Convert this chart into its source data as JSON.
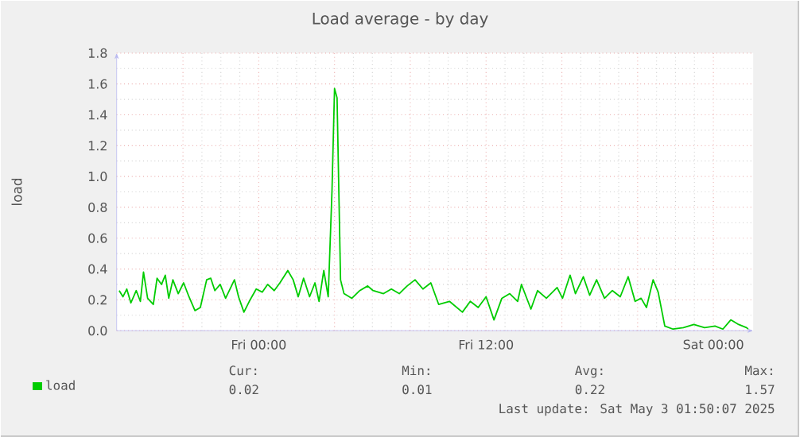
{
  "chart_data": {
    "type": "line",
    "title": "Load average - by day",
    "ylabel": "load",
    "x": [
      "2025-05-01T16:38",
      "2025-05-01T16:50",
      "2025-05-01T17:02",
      "2025-05-01T17:15",
      "2025-05-01T17:32",
      "2025-05-01T17:45",
      "2025-05-01T17:55",
      "2025-05-01T18:08",
      "2025-05-01T18:26",
      "2025-05-01T18:38",
      "2025-05-01T18:52",
      "2025-05-01T19:04",
      "2025-05-01T19:15",
      "2025-05-01T19:28",
      "2025-05-01T19:45",
      "2025-05-01T20:02",
      "2025-05-01T20:19",
      "2025-05-01T20:38",
      "2025-05-01T20:55",
      "2025-05-01T21:15",
      "2025-05-01T21:28",
      "2025-05-01T21:41",
      "2025-05-01T21:58",
      "2025-05-01T22:15",
      "2025-05-01T22:43",
      "2025-05-01T22:56",
      "2025-05-01T23:13",
      "2025-05-01T23:30",
      "2025-05-01T23:52",
      "2025-05-02T00:11",
      "2025-05-02T00:28",
      "2025-05-02T00:49",
      "2025-05-02T01:07",
      "2025-05-02T01:32",
      "2025-05-02T01:49",
      "2025-05-02T02:05",
      "2025-05-02T02:22",
      "2025-05-02T02:41",
      "2025-05-02T02:58",
      "2025-05-02T03:11",
      "2025-05-02T03:26",
      "2025-05-02T03:40",
      "2025-05-02T03:52",
      "2025-05-02T04:00",
      "2025-05-02T04:08",
      "2025-05-02T04:19",
      "2025-05-02T04:30",
      "2025-05-02T04:55",
      "2025-05-02T05:20",
      "2025-05-02T05:45",
      "2025-05-02T06:02",
      "2025-05-02T06:35",
      "2025-05-02T07:00",
      "2025-05-02T07:25",
      "2025-05-02T07:50",
      "2025-05-02T08:15",
      "2025-05-02T08:40",
      "2025-05-02T09:05",
      "2025-05-02T09:30",
      "2025-05-02T10:04",
      "2025-05-02T10:45",
      "2025-05-02T11:10",
      "2025-05-02T11:35",
      "2025-05-02T12:00",
      "2025-05-02T12:25",
      "2025-05-02T12:50",
      "2025-05-02T13:15",
      "2025-05-02T13:40",
      "2025-05-02T13:52",
      "2025-05-02T14:22",
      "2025-05-02T14:43",
      "2025-05-02T15:11",
      "2025-05-02T15:45",
      "2025-05-02T16:02",
      "2025-05-02T16:26",
      "2025-05-02T16:43",
      "2025-05-02T17:08",
      "2025-05-02T17:28",
      "2025-05-02T17:50",
      "2025-05-02T18:15",
      "2025-05-02T18:40",
      "2025-05-02T19:05",
      "2025-05-02T19:30",
      "2025-05-02T19:52",
      "2025-05-02T20:11",
      "2025-05-02T20:28",
      "2025-05-02T20:49",
      "2025-05-02T21:05",
      "2025-05-02T21:26",
      "2025-05-02T21:52",
      "2025-05-02T22:25",
      "2025-05-02T22:58",
      "2025-05-02T23:32",
      "2025-05-03T00:05",
      "2025-05-03T00:30",
      "2025-05-03T00:55",
      "2025-05-03T01:20",
      "2025-05-03T01:45",
      "2025-05-03T01:50"
    ],
    "series": [
      {
        "name": "load",
        "color": "#00cc00",
        "values": [
          0.26,
          0.22,
          0.27,
          0.18,
          0.26,
          0.19,
          0.38,
          0.21,
          0.17,
          0.34,
          0.3,
          0.36,
          0.21,
          0.33,
          0.24,
          0.31,
          0.22,
          0.13,
          0.15,
          0.33,
          0.34,
          0.26,
          0.3,
          0.21,
          0.33,
          0.22,
          0.12,
          0.19,
          0.27,
          0.25,
          0.3,
          0.26,
          0.31,
          0.39,
          0.33,
          0.22,
          0.34,
          0.22,
          0.31,
          0.19,
          0.39,
          0.22,
          0.91,
          1.57,
          1.51,
          0.33,
          0.24,
          0.21,
          0.26,
          0.29,
          0.26,
          0.24,
          0.27,
          0.24,
          0.29,
          0.33,
          0.27,
          0.31,
          0.17,
          0.19,
          0.12,
          0.19,
          0.15,
          0.22,
          0.07,
          0.21,
          0.24,
          0.19,
          0.3,
          0.14,
          0.26,
          0.21,
          0.28,
          0.21,
          0.36,
          0.24,
          0.35,
          0.23,
          0.33,
          0.21,
          0.26,
          0.22,
          0.35,
          0.19,
          0.21,
          0.15,
          0.33,
          0.25,
          0.03,
          0.01,
          0.02,
          0.04,
          0.02,
          0.03,
          0.01,
          0.07,
          0.04,
          0.02,
          0.01
        ]
      }
    ],
    "xlim": [
      "2025-05-01T16:30",
      "2025-05-03T02:06"
    ],
    "xticks": [
      {
        "value": "2025-05-01T20:00",
        "label": null
      },
      {
        "value": "2025-05-02T00:00",
        "label": "Fri 00:00"
      },
      {
        "value": "2025-05-02T04:00",
        "label": null
      },
      {
        "value": "2025-05-02T08:00",
        "label": null
      },
      {
        "value": "2025-05-02T12:00",
        "label": "Fri 12:00"
      },
      {
        "value": "2025-05-02T16:00",
        "label": null
      },
      {
        "value": "2025-05-02T20:00",
        "label": null
      },
      {
        "value": "2025-05-03T00:00",
        "label": "Sat 00:00"
      }
    ],
    "ylim": [
      0,
      1.8
    ],
    "yticks": [
      {
        "value": 0,
        "label": "0.0"
      },
      0.2,
      0.4,
      0.6,
      0.8,
      {
        "value": 1,
        "label": "1.0"
      },
      1.2,
      1.4,
      1.6,
      1.8
    ],
    "grid": true,
    "legend": "bottom left",
    "marker": "none",
    "line_style": "solid",
    "annotations": [
      "Cur:",
      "Min:",
      "Avg:",
      "Max:",
      "0.02",
      "0.01",
      "0.22",
      "1.57",
      "Last update: Sat May  3 01:50:07 2025"
    ]
  }
}
